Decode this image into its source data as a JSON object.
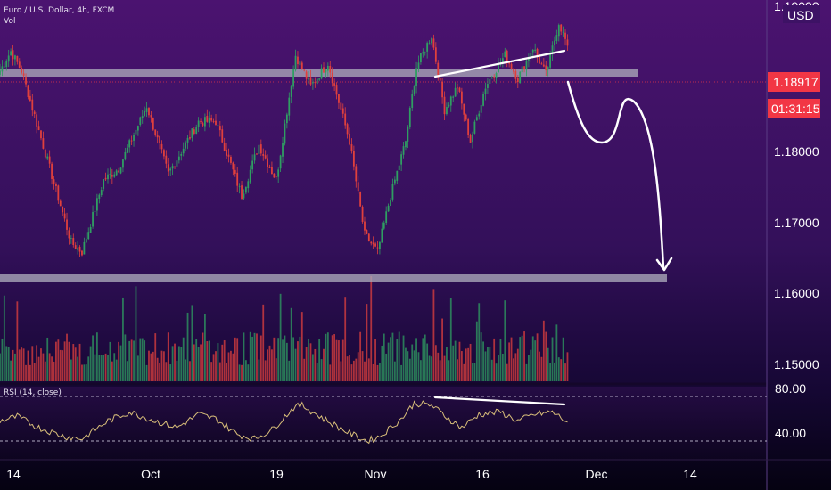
{
  "legend": {
    "symbol": "Euro / U.S. Dollar, 4h, FXCM",
    "volume_label": "Vol"
  },
  "price_axis": {
    "currency": "USD",
    "top_cut_label": "1.19000",
    "current_price": "1.18917",
    "countdown": "01:31:15"
  },
  "rsi_panel": {
    "label": "RSI (14, close)",
    "upper_label": "80.00",
    "lower_label": "40.00"
  },
  "colors": {
    "up": "#2f9e62",
    "down": "#e0403d",
    "level": "#a9a6b8",
    "price_tag": "#f23645",
    "rsi": "#d9bf7a"
  },
  "chart_data": {
    "type": "candlestick",
    "timeframe": "4h",
    "x_ticks": [
      "14",
      "Oct",
      "19",
      "Nov",
      "16",
      "Dec",
      "14"
    ],
    "y_ticks": [
      "1.18000",
      "1.17000",
      "1.16000",
      "1.15000"
    ],
    "ylim": [
      1.1483,
      1.1938
    ],
    "resistance_level": 1.1905,
    "support_level": 1.1624,
    "current_price": 1.18917,
    "swing_points": [
      {
        "i": 0,
        "p": 1.186
      },
      {
        "i": 5,
        "p": 1.1885
      },
      {
        "i": 10,
        "p": 1.186
      },
      {
        "i": 22,
        "p": 1.1745
      },
      {
        "i": 33,
        "p": 1.164
      },
      {
        "i": 38,
        "p": 1.1628
      },
      {
        "i": 48,
        "p": 1.172
      },
      {
        "i": 55,
        "p": 1.1735
      },
      {
        "i": 68,
        "p": 1.1815
      },
      {
        "i": 78,
        "p": 1.1728
      },
      {
        "i": 92,
        "p": 1.1795
      },
      {
        "i": 100,
        "p": 1.1795
      },
      {
        "i": 112,
        "p": 1.17
      },
      {
        "i": 120,
        "p": 1.1765
      },
      {
        "i": 128,
        "p": 1.172
      },
      {
        "i": 137,
        "p": 1.188
      },
      {
        "i": 144,
        "p": 1.184
      },
      {
        "i": 152,
        "p": 1.187
      },
      {
        "i": 162,
        "p": 1.177
      },
      {
        "i": 169,
        "p": 1.165
      },
      {
        "i": 175,
        "p": 1.1628
      },
      {
        "i": 181,
        "p": 1.17
      },
      {
        "i": 188,
        "p": 1.177
      },
      {
        "i": 193,
        "p": 1.1865
      },
      {
        "i": 200,
        "p": 1.1905
      },
      {
        "i": 206,
        "p": 1.181
      },
      {
        "i": 212,
        "p": 1.184
      },
      {
        "i": 218,
        "p": 1.177
      },
      {
        "i": 225,
        "p": 1.184
      },
      {
        "i": 234,
        "p": 1.188
      },
      {
        "i": 240,
        "p": 1.185
      },
      {
        "i": 247,
        "p": 1.189
      },
      {
        "i": 253,
        "p": 1.1855
      },
      {
        "i": 259,
        "p": 1.1922
      },
      {
        "i": 263,
        "p": 1.1892
      }
    ],
    "rsi_levels": [
      80,
      40
    ],
    "rsi_swing_points": [
      {
        "i": 0,
        "v": 58
      },
      {
        "i": 8,
        "v": 62
      },
      {
        "i": 18,
        "v": 52
      },
      {
        "i": 30,
        "v": 44
      },
      {
        "i": 38,
        "v": 42
      },
      {
        "i": 50,
        "v": 58
      },
      {
        "i": 60,
        "v": 66
      },
      {
        "i": 72,
        "v": 58
      },
      {
        "i": 82,
        "v": 52
      },
      {
        "i": 92,
        "v": 64
      },
      {
        "i": 100,
        "v": 60
      },
      {
        "i": 110,
        "v": 46
      },
      {
        "i": 118,
        "v": 42
      },
      {
        "i": 126,
        "v": 50
      },
      {
        "i": 136,
        "v": 70
      },
      {
        "i": 140,
        "v": 72
      },
      {
        "i": 150,
        "v": 60
      },
      {
        "i": 162,
        "v": 47
      },
      {
        "i": 170,
        "v": 40
      },
      {
        "i": 176,
        "v": 44
      },
      {
        "i": 186,
        "v": 60
      },
      {
        "i": 192,
        "v": 74
      },
      {
        "i": 200,
        "v": 72
      },
      {
        "i": 208,
        "v": 60
      },
      {
        "i": 214,
        "v": 52
      },
      {
        "i": 222,
        "v": 64
      },
      {
        "i": 232,
        "v": 66
      },
      {
        "i": 240,
        "v": 58
      },
      {
        "i": 248,
        "v": 64
      },
      {
        "i": 256,
        "v": 66
      },
      {
        "i": 263,
        "v": 57
      }
    ],
    "annotations": [
      {
        "type": "trendline",
        "panel": "price",
        "from": {
          "i": 200,
          "p": 1.1905
        },
        "to": {
          "i": 262,
          "p": 1.1933
        }
      },
      {
        "type": "trendline",
        "panel": "rsi",
        "from": {
          "i": 200,
          "v": 75
        },
        "to": {
          "i": 262,
          "v": 67
        }
      },
      {
        "type": "projection-arrow",
        "points": [
          {
            "i": 262,
            "p": 1.189
          },
          {
            "i": 276,
            "p": 1.1805
          },
          {
            "i": 292,
            "p": 1.186
          },
          {
            "i": 306,
            "p": 1.163
          }
        ]
      }
    ]
  }
}
